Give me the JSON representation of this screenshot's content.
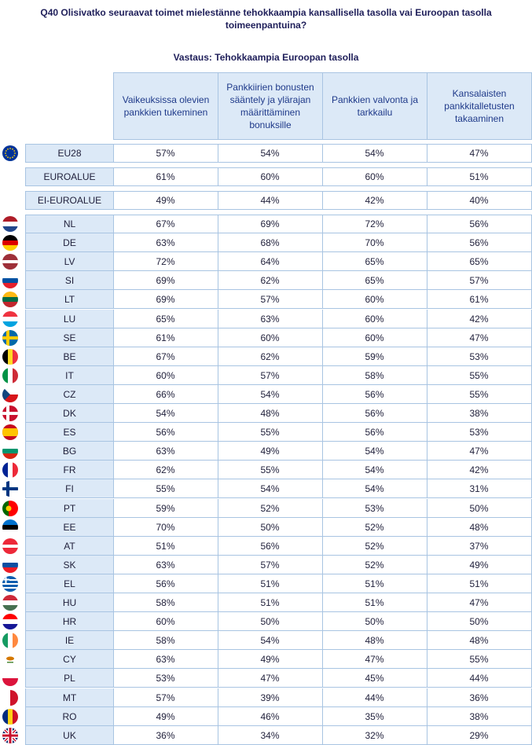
{
  "title": "Q40 Olisivatko seuraavat toimet mielestänne tehokkaampia kansallisella tasolla vai Euroopan tasolla toimeenpantuina?",
  "subtitle": "Vastaus: Tehokkaampia Euroopan tasolla",
  "chart_data": {
    "type": "table",
    "columns": [
      "Vaikeuksissa olevien pankkien tukeminen",
      "Pankkiirien bonusten sääntely ja ylärajan määrittäminen bonuksille",
      "Pankkien valvonta ja tarkkailu",
      "Kansalaisten pankkitalletusten takaaminen"
    ],
    "aggregates": [
      {
        "label": "EU28",
        "values": [
          "57%",
          "54%",
          "54%",
          "47%"
        ],
        "flag": "eu-flag",
        "colors": [
          "#003399",
          "#003399",
          "#003399"
        ]
      },
      {
        "label": "EUROALUE",
        "values": [
          "61%",
          "60%",
          "60%",
          "51%"
        ]
      },
      {
        "label": "EI-EUROALUE",
        "values": [
          "49%",
          "44%",
          "42%",
          "40%"
        ]
      }
    ],
    "countries": [
      {
        "label": "NL",
        "values": [
          "67%",
          "69%",
          "72%",
          "56%"
        ],
        "flag": "nl-flag",
        "colors": [
          "#ae1c28",
          "#ffffff",
          "#21468b"
        ]
      },
      {
        "label": "DE",
        "values": [
          "63%",
          "68%",
          "70%",
          "56%"
        ],
        "flag": "de-flag",
        "colors": [
          "#000000",
          "#dd0000",
          "#ffce00"
        ]
      },
      {
        "label": "LV",
        "values": [
          "72%",
          "64%",
          "65%",
          "65%"
        ],
        "flag": "lv-flag",
        "colors": [
          "#9e3039",
          "#ffffff",
          "#9e3039"
        ]
      },
      {
        "label": "SI",
        "values": [
          "69%",
          "62%",
          "65%",
          "57%"
        ],
        "flag": "si-flag",
        "colors": [
          "#ffffff",
          "#0051a2",
          "#e5202c"
        ]
      },
      {
        "label": "LT",
        "values": [
          "69%",
          "57%",
          "60%",
          "61%"
        ],
        "flag": "lt-flag",
        "colors": [
          "#fdb913",
          "#006a44",
          "#c1272d"
        ]
      },
      {
        "label": "LU",
        "values": [
          "65%",
          "63%",
          "60%",
          "42%"
        ],
        "flag": "lu-flag",
        "colors": [
          "#ef3340",
          "#ffffff",
          "#00a3e0"
        ]
      },
      {
        "label": "SE",
        "values": [
          "61%",
          "60%",
          "60%",
          "47%"
        ],
        "flag": "se-flag",
        "colors": [
          "#006aa7",
          "#fecc00",
          "#006aa7"
        ]
      },
      {
        "label": "BE",
        "values": [
          "67%",
          "62%",
          "59%",
          "53%"
        ],
        "flag": "be-flag",
        "colors": [
          "#000000",
          "#fdda24",
          "#ef3340"
        ]
      },
      {
        "label": "IT",
        "values": [
          "60%",
          "57%",
          "58%",
          "55%"
        ],
        "flag": "it-flag",
        "colors": [
          "#009246",
          "#ffffff",
          "#ce2b37"
        ]
      },
      {
        "label": "CZ",
        "values": [
          "66%",
          "54%",
          "56%",
          "55%"
        ],
        "flag": "cz-flag",
        "colors": [
          "#ffffff",
          "#d7141a",
          "#11457e"
        ]
      },
      {
        "label": "DK",
        "values": [
          "54%",
          "48%",
          "56%",
          "38%"
        ],
        "flag": "dk-flag",
        "colors": [
          "#c8102e",
          "#ffffff",
          "#c8102e"
        ]
      },
      {
        "label": "ES",
        "values": [
          "56%",
          "55%",
          "56%",
          "53%"
        ],
        "flag": "es-flag",
        "colors": [
          "#c60b1e",
          "#ffc400",
          "#c60b1e"
        ]
      },
      {
        "label": "BG",
        "values": [
          "63%",
          "49%",
          "54%",
          "47%"
        ],
        "flag": "bg-flag",
        "colors": [
          "#ffffff",
          "#00966e",
          "#d62612"
        ]
      },
      {
        "label": "FR",
        "values": [
          "62%",
          "55%",
          "54%",
          "42%"
        ],
        "flag": "fr-flag",
        "colors": [
          "#002395",
          "#ffffff",
          "#ed2939"
        ]
      },
      {
        "label": "FI",
        "values": [
          "55%",
          "54%",
          "54%",
          "31%"
        ],
        "flag": "fi-flag",
        "colors": [
          "#ffffff",
          "#003580",
          "#ffffff"
        ]
      },
      {
        "label": "PT",
        "values": [
          "59%",
          "52%",
          "53%",
          "50%"
        ],
        "flag": "pt-flag",
        "colors": [
          "#006600",
          "#ff0000",
          "#ffcc00"
        ]
      },
      {
        "label": "EE",
        "values": [
          "70%",
          "50%",
          "52%",
          "48%"
        ],
        "flag": "ee-flag",
        "colors": [
          "#0072ce",
          "#000000",
          "#ffffff"
        ]
      },
      {
        "label": "AT",
        "values": [
          "51%",
          "56%",
          "52%",
          "37%"
        ],
        "flag": "at-flag",
        "colors": [
          "#ed2939",
          "#ffffff",
          "#ed2939"
        ]
      },
      {
        "label": "SK",
        "values": [
          "63%",
          "57%",
          "52%",
          "49%"
        ],
        "flag": "sk-flag",
        "colors": [
          "#ffffff",
          "#0b4ea2",
          "#ee1c25"
        ]
      },
      {
        "label": "EL",
        "values": [
          "56%",
          "51%",
          "51%",
          "51%"
        ],
        "flag": "el-flag",
        "colors": [
          "#0d5eaf",
          "#ffffff",
          "#0d5eaf"
        ]
      },
      {
        "label": "HU",
        "values": [
          "58%",
          "51%",
          "51%",
          "47%"
        ],
        "flag": "hu-flag",
        "colors": [
          "#ce2939",
          "#ffffff",
          "#477050"
        ]
      },
      {
        "label": "HR",
        "values": [
          "60%",
          "50%",
          "50%",
          "50%"
        ],
        "flag": "hr-flag",
        "colors": [
          "#ff0000",
          "#ffffff",
          "#171796"
        ]
      },
      {
        "label": "IE",
        "values": [
          "58%",
          "54%",
          "48%",
          "48%"
        ],
        "flag": "ie-flag",
        "colors": [
          "#169b62",
          "#ffffff",
          "#ff883e"
        ]
      },
      {
        "label": "CY",
        "values": [
          "63%",
          "49%",
          "47%",
          "55%"
        ],
        "flag": "cy-flag",
        "colors": [
          "#ffffff",
          "#d57800",
          "#ffffff"
        ]
      },
      {
        "label": "PL",
        "values": [
          "53%",
          "47%",
          "45%",
          "44%"
        ],
        "flag": "pl-flag",
        "colors": [
          "#ffffff",
          "#dc143c",
          "#dc143c"
        ]
      },
      {
        "label": "MT",
        "values": [
          "57%",
          "39%",
          "44%",
          "36%"
        ],
        "flag": "mt-flag",
        "colors": [
          "#ffffff",
          "#cf142b",
          "#cf142b"
        ]
      },
      {
        "label": "RO",
        "values": [
          "49%",
          "46%",
          "35%",
          "38%"
        ],
        "flag": "ro-flag",
        "colors": [
          "#002b7f",
          "#fcd116",
          "#ce1126"
        ]
      },
      {
        "label": "UK",
        "values": [
          "36%",
          "34%",
          "32%",
          "29%"
        ],
        "flag": "uk-flag",
        "colors": [
          "#012169",
          "#ffffff",
          "#c8102e"
        ]
      }
    ]
  }
}
